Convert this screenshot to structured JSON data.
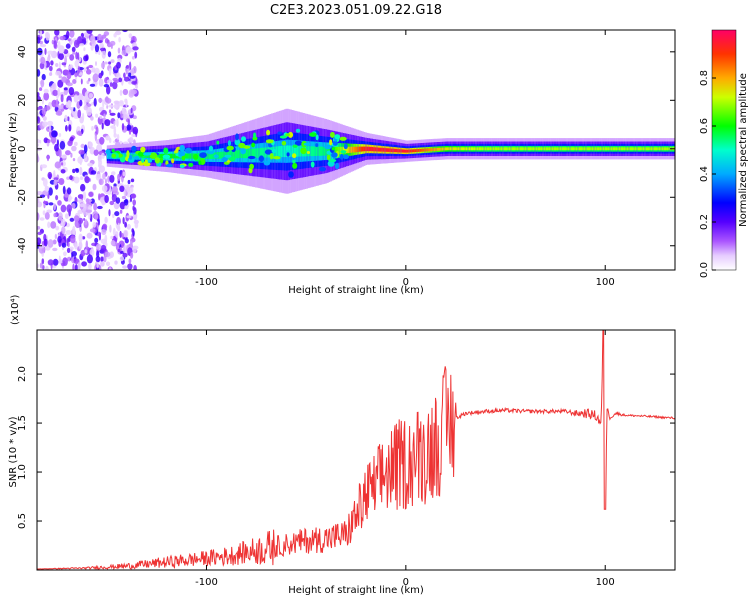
{
  "title": "C2E3.2023.051.09.22.G18",
  "chart_data": [
    {
      "type": "heatmap",
      "xlabel": "Height of straight line (km)",
      "ylabel": "Frequency (Hz)",
      "xlim": [
        -185,
        135
      ],
      "ylim": [
        -50,
        49
      ],
      "xticks": [
        -100,
        0,
        100
      ],
      "yticks": [
        -40,
        -20,
        0,
        20,
        40
      ],
      "colorbar": {
        "label": "Normalized spectral amplitude",
        "range": [
          0,
          1
        ],
        "ticks": [
          0.0,
          0.2,
          0.4,
          0.6,
          0.8
        ],
        "tick_labels": [
          "0.0",
          "0.2",
          "0.4",
          "0.6",
          "0.8"
        ],
        "colormap": "rainbow",
        "colors": [
          "#ffffff",
          "#cc99ff",
          "#6600ff",
          "#0000ff",
          "#00ffff",
          "#00ff00",
          "#ffff00",
          "#ff7f00",
          "#ff0000"
        ]
      },
      "ridge": {
        "description": "spectral energy concentrated near 0 Hz",
        "x": [
          -150,
          -120,
          -100,
          -80,
          -60,
          -40,
          -20,
          0,
          20,
          40,
          60,
          80,
          100,
          120,
          135
        ],
        "center_hz": [
          -3,
          -3,
          -3,
          -2,
          -1,
          -1,
          0,
          -1,
          0,
          0,
          0,
          0,
          0,
          0,
          0
        ],
        "halfwidth_hz": [
          2,
          3,
          4,
          6,
          8,
          6,
          3,
          2,
          2,
          2,
          2,
          2,
          2,
          2,
          2
        ],
        "peak_amplitude": [
          0.5,
          0.6,
          0.55,
          0.55,
          0.5,
          0.55,
          0.95,
          0.95,
          0.75,
          0.7,
          0.7,
          0.7,
          0.7,
          0.7,
          0.7
        ]
      },
      "noise_region": {
        "x_range": [
          -185,
          -135
        ],
        "note": "broadband scattered noise"
      }
    },
    {
      "type": "line",
      "xlabel": "Height of straight line (km)",
      "ylabel": "SNR (10 * v/v)",
      "y_multiplier": "(x10⁴)",
      "xlim": [
        -185,
        135
      ],
      "ylim": [
        0,
        2.45
      ],
      "xticks": [
        -100,
        0,
        100
      ],
      "yticks": [
        0.5,
        1.0,
        1.5,
        2.0
      ],
      "ytick_labels": [
        "0.5",
        "1.0",
        "1.5",
        "2.0"
      ],
      "series": [
        {
          "color": "#ee3333",
          "x": [
            -185,
            -160,
            -140,
            -120,
            -100,
            -90,
            -80,
            -70,
            -60,
            -50,
            -40,
            -30,
            -25,
            -20,
            -15,
            -10,
            -5,
            0,
            5,
            10,
            15,
            20,
            25,
            30,
            40,
            50,
            60,
            70,
            80,
            85,
            90,
            95,
            98,
            99,
            100,
            101,
            102,
            105,
            110,
            120,
            135
          ],
          "values": [
            0.01,
            0.02,
            0.04,
            0.08,
            0.12,
            0.14,
            0.18,
            0.22,
            0.26,
            0.3,
            0.32,
            0.36,
            0.55,
            0.75,
            0.85,
            1.0,
            1.05,
            1.1,
            1.15,
            1.2,
            1.3,
            1.45,
            1.55,
            1.6,
            1.62,
            1.63,
            1.62,
            1.62,
            1.62,
            1.6,
            1.6,
            1.58,
            1.5,
            2.45,
            0.62,
            1.7,
            1.55,
            1.6,
            1.58,
            1.57,
            1.55
          ],
          "noise": [
            0.0,
            0.01,
            0.03,
            0.06,
            0.08,
            0.1,
            0.12,
            0.18,
            0.22,
            0.25,
            0.25,
            0.28,
            0.25,
            0.2,
            0.18,
            0.15,
            0.12,
            0.1,
            0.08,
            0.06,
            0.04,
            0.03,
            0.02,
            0.02,
            0.02,
            0.02,
            0.02,
            0.02,
            0.02,
            0.03,
            0.05,
            0.05,
            0.05,
            0.0,
            0.0,
            0.02,
            0.02,
            0.02,
            0.01,
            0.01,
            0.01
          ]
        }
      ]
    }
  ]
}
